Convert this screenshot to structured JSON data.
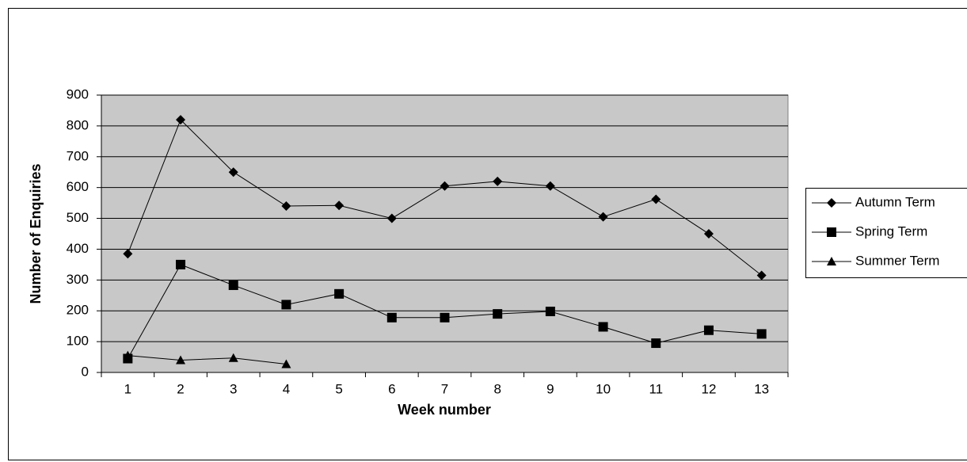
{
  "chart_data": {
    "type": "line",
    "x_label": "Week number",
    "y_label": "Number of Enquiries",
    "categories": [
      "1",
      "2",
      "3",
      "4",
      "5",
      "6",
      "7",
      "8",
      "9",
      "10",
      "11",
      "12",
      "13"
    ],
    "series": [
      {
        "name": "Autumn Term",
        "color": "#000000",
        "marker": "diamond",
        "values": [
          385,
          820,
          650,
          540,
          542,
          500,
          605,
          620,
          605,
          505,
          562,
          450,
          315
        ]
      },
      {
        "name": "Spring Term",
        "color": "#000000",
        "marker": "square",
        "values": [
          45,
          350,
          283,
          220,
          255,
          178,
          178,
          190,
          198,
          148,
          95,
          137,
          125
        ]
      },
      {
        "name": "Summer Term",
        "color": "#000000",
        "marker": "triangle",
        "values": [
          55,
          40,
          47,
          27,
          null,
          null,
          null,
          null,
          null,
          null,
          null,
          null,
          null
        ]
      }
    ],
    "ylim": [
      0,
      900
    ],
    "yticks": [
      0,
      100,
      200,
      300,
      400,
      500,
      600,
      700,
      800,
      900
    ],
    "grid": true,
    "legend": "right"
  }
}
